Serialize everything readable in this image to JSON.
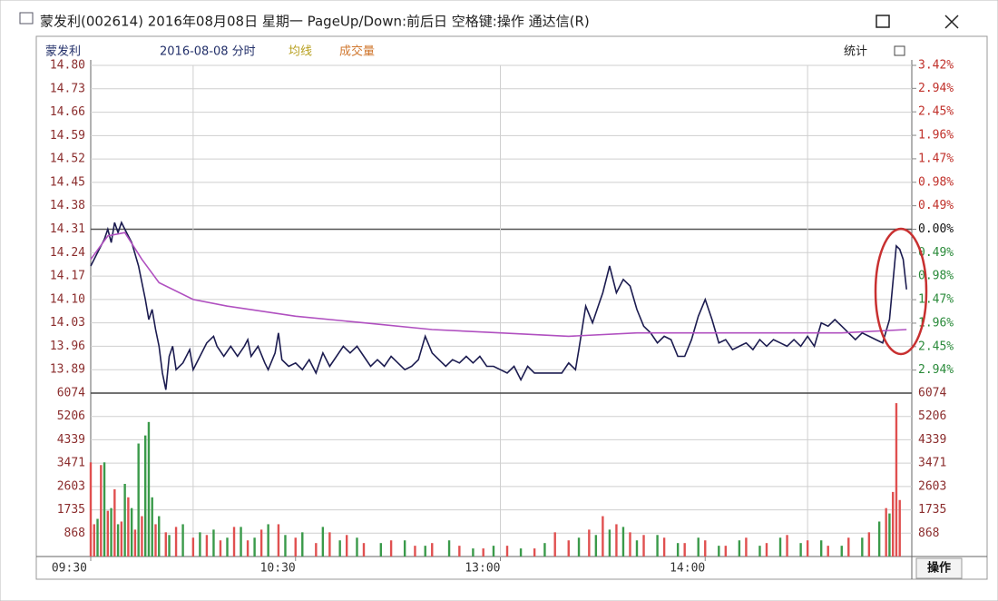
{
  "window": {
    "title": "蒙发利(002614) 2016年08月08日 星期一 PageUp/Down:前后日 空格键:操作 通达信(R)"
  },
  "header": {
    "stock": "蒙发利",
    "date": "2016-08-08 分时",
    "avg_label": "均线",
    "volume_label": "成交量",
    "stats": "统计"
  },
  "footer": {
    "action": "操作"
  },
  "chart_data": [
    {
      "type": "line",
      "xlim": [
        0,
        240
      ],
      "xticks": [
        {
          "value": 0,
          "label": "09:30"
        },
        {
          "value": 60,
          "label": "10:30"
        },
        {
          "value": 120,
          "label": "13:00"
        },
        {
          "value": 180,
          "label": "14:00"
        }
      ],
      "xgrid": [
        30,
        120,
        210
      ],
      "ylim": [
        13.82,
        14.8
      ],
      "yticks": [
        {
          "value": 14.8,
          "label": "14.80"
        },
        14.73,
        14.66,
        14.59,
        14.52,
        14.45,
        14.38,
        14.31,
        14.24,
        14.17,
        {
          "value": 14.1,
          "label": "14.10"
        },
        14.03,
        13.96,
        13.89
      ],
      "y2lim": [
        -3.42,
        3.42
      ],
      "y2ticks": [
        {
          "value": 3.42,
          "label": "3.42%"
        },
        {
          "value": 2.94,
          "label": "2.94%"
        },
        {
          "value": 2.45,
          "label": "2.45%"
        },
        {
          "value": 1.96,
          "label": "1.96%"
        },
        {
          "value": 1.47,
          "label": "1.47%"
        },
        {
          "value": 0.98,
          "label": "0.98%"
        },
        {
          "value": 0.49,
          "label": "0.49%"
        },
        {
          "value": 0,
          "label": "0.00%"
        },
        {
          "value": -0.49,
          "label": "0.49%"
        },
        {
          "value": -0.98,
          "label": "0.98%"
        },
        {
          "value": -1.47,
          "label": "1.47%"
        },
        {
          "value": -1.96,
          "label": "1.96%"
        },
        {
          "value": -2.45,
          "label": "2.45%"
        },
        {
          "value": -2.94,
          "label": "2.94%"
        }
      ],
      "grid": true,
      "up_color": "#c0302a",
      "down_color": "#2a8a3a",
      "series": [
        {
          "color": "#1c1c50",
          "x": [
            0,
            2,
            4,
            5,
            6,
            7,
            8,
            9,
            10,
            12,
            14,
            16,
            17,
            18,
            19,
            20,
            21,
            22,
            23,
            24,
            25,
            27,
            29,
            30,
            32,
            34,
            36,
            37,
            39,
            41,
            43,
            45,
            46,
            47,
            49,
            51,
            52,
            54,
            55,
            56,
            58,
            60,
            62,
            64,
            66,
            68,
            70,
            72,
            74,
            76,
            78,
            80,
            82,
            84,
            86,
            88,
            90,
            92,
            94,
            96,
            98,
            100,
            102,
            104,
            106,
            108,
            110,
            112,
            114,
            116,
            118,
            120,
            122,
            124,
            126,
            128,
            130,
            132,
            134,
            136,
            138,
            140,
            142,
            143,
            145,
            147,
            149,
            150,
            152,
            154,
            156,
            158,
            160,
            162,
            164,
            166,
            168,
            170,
            172,
            174,
            176,
            178,
            180,
            182,
            184,
            186,
            188,
            190,
            192,
            194,
            196,
            198,
            200,
            202,
            204,
            206,
            208,
            210,
            212,
            214,
            216,
            218,
            220,
            222,
            224,
            226,
            228,
            230,
            232,
            234,
            236,
            237,
            238,
            239
          ],
          "values": [
            14.2,
            14.24,
            14.28,
            14.31,
            14.27,
            14.33,
            14.3,
            14.33,
            14.31,
            14.27,
            14.2,
            14.1,
            14.04,
            14.07,
            14.01,
            13.96,
            13.88,
            13.83,
            13.93,
            13.96,
            13.89,
            13.91,
            13.95,
            13.89,
            13.93,
            13.97,
            13.99,
            13.96,
            13.93,
            13.96,
            13.93,
            13.96,
            13.98,
            13.93,
            13.96,
            13.91,
            13.89,
            13.94,
            14.0,
            13.92,
            13.9,
            13.91,
            13.89,
            13.92,
            13.88,
            13.94,
            13.9,
            13.93,
            13.96,
            13.94,
            13.96,
            13.93,
            13.9,
            13.92,
            13.9,
            13.93,
            13.91,
            13.89,
            13.9,
            13.92,
            13.99,
            13.94,
            13.92,
            13.9,
            13.92,
            13.91,
            13.93,
            13.91,
            13.93,
            13.9,
            13.9,
            13.89,
            13.88,
            13.9,
            13.86,
            13.9,
            13.88,
            13.88,
            13.88,
            13.88,
            13.88,
            13.91,
            13.89,
            13.95,
            14.08,
            14.03,
            14.09,
            14.12,
            14.2,
            14.12,
            14.16,
            14.14,
            14.07,
            14.02,
            14.0,
            13.97,
            13.99,
            13.98,
            13.93,
            13.93,
            13.98,
            14.05,
            14.1,
            14.04,
            13.97,
            13.98,
            13.95,
            13.96,
            13.97,
            13.95,
            13.98,
            13.96,
            13.98,
            13.97,
            13.96,
            13.98,
            13.96,
            13.99,
            13.96,
            14.03,
            14.02,
            14.04,
            14.02,
            14.0,
            13.98,
            14.0,
            13.99,
            13.98,
            13.97,
            14.04,
            14.26,
            14.25,
            14.22,
            14.13
          ]
        },
        {
          "color": "#b050c0",
          "x": [
            0,
            5,
            10,
            15,
            20,
            30,
            40,
            60,
            80,
            100,
            120,
            140,
            160,
            180,
            200,
            220,
            239
          ],
          "values": [
            14.22,
            14.29,
            14.3,
            14.22,
            14.15,
            14.1,
            14.08,
            14.05,
            14.03,
            14.01,
            14.0,
            13.99,
            14.0,
            14.0,
            14.0,
            14.0,
            14.01
          ]
        }
      ]
    },
    {
      "type": "bar",
      "xlim": [
        0,
        240
      ],
      "ylim": [
        0,
        6074
      ],
      "yticks": [
        868,
        1735,
        2603,
        3471,
        4339,
        5206,
        6074
      ],
      "series": [
        {
          "color": "#e05050",
          "x": [
            0,
            1,
            3,
            5,
            7,
            9,
            11,
            13,
            15,
            19,
            22,
            25,
            30,
            34,
            38,
            42,
            46,
            50,
            55,
            60,
            66,
            70,
            75,
            80,
            88,
            95,
            100,
            108,
            115,
            122,
            130,
            136,
            140,
            146,
            150,
            154,
            158,
            162,
            168,
            174,
            180,
            186,
            192,
            198,
            204,
            210,
            216,
            222,
            228,
            233,
            235,
            236,
            237
          ],
          "values": [
            3500,
            1200,
            3400,
            1700,
            2500,
            1300,
            2200,
            1000,
            1500,
            1200,
            900,
            1100,
            700,
            800,
            600,
            1100,
            600,
            1000,
            1200,
            700,
            500,
            900,
            800,
            500,
            600,
            400,
            500,
            400,
            300,
            400,
            300,
            900,
            600,
            1000,
            1500,
            1200,
            900,
            800,
            700,
            500,
            600,
            400,
            700,
            500,
            800,
            600,
            400,
            700,
            900,
            1800,
            2400,
            5700,
            2100
          ]
        },
        {
          "color": "#3a9a4a",
          "x": [
            2,
            4,
            6,
            8,
            10,
            12,
            14,
            16,
            17,
            18,
            20,
            23,
            27,
            32,
            36,
            40,
            44,
            48,
            52,
            57,
            62,
            68,
            73,
            78,
            85,
            92,
            98,
            105,
            112,
            118,
            126,
            133,
            143,
            148,
            152,
            156,
            160,
            166,
            172,
            178,
            184,
            190,
            196,
            202,
            208,
            214,
            220,
            226,
            231,
            234
          ],
          "values": [
            1400,
            3500,
            1800,
            1200,
            2700,
            1800,
            4200,
            4500,
            5000,
            2200,
            1500,
            800,
            1200,
            900,
            1000,
            700,
            1100,
            700,
            1200,
            800,
            900,
            1100,
            600,
            700,
            500,
            600,
            400,
            600,
            300,
            400,
            300,
            500,
            700,
            800,
            1000,
            1100,
            600,
            800,
            500,
            700,
            400,
            600,
            400,
            700,
            500,
            600,
            400,
            700,
            1300,
            1600
          ]
        }
      ]
    }
  ]
}
